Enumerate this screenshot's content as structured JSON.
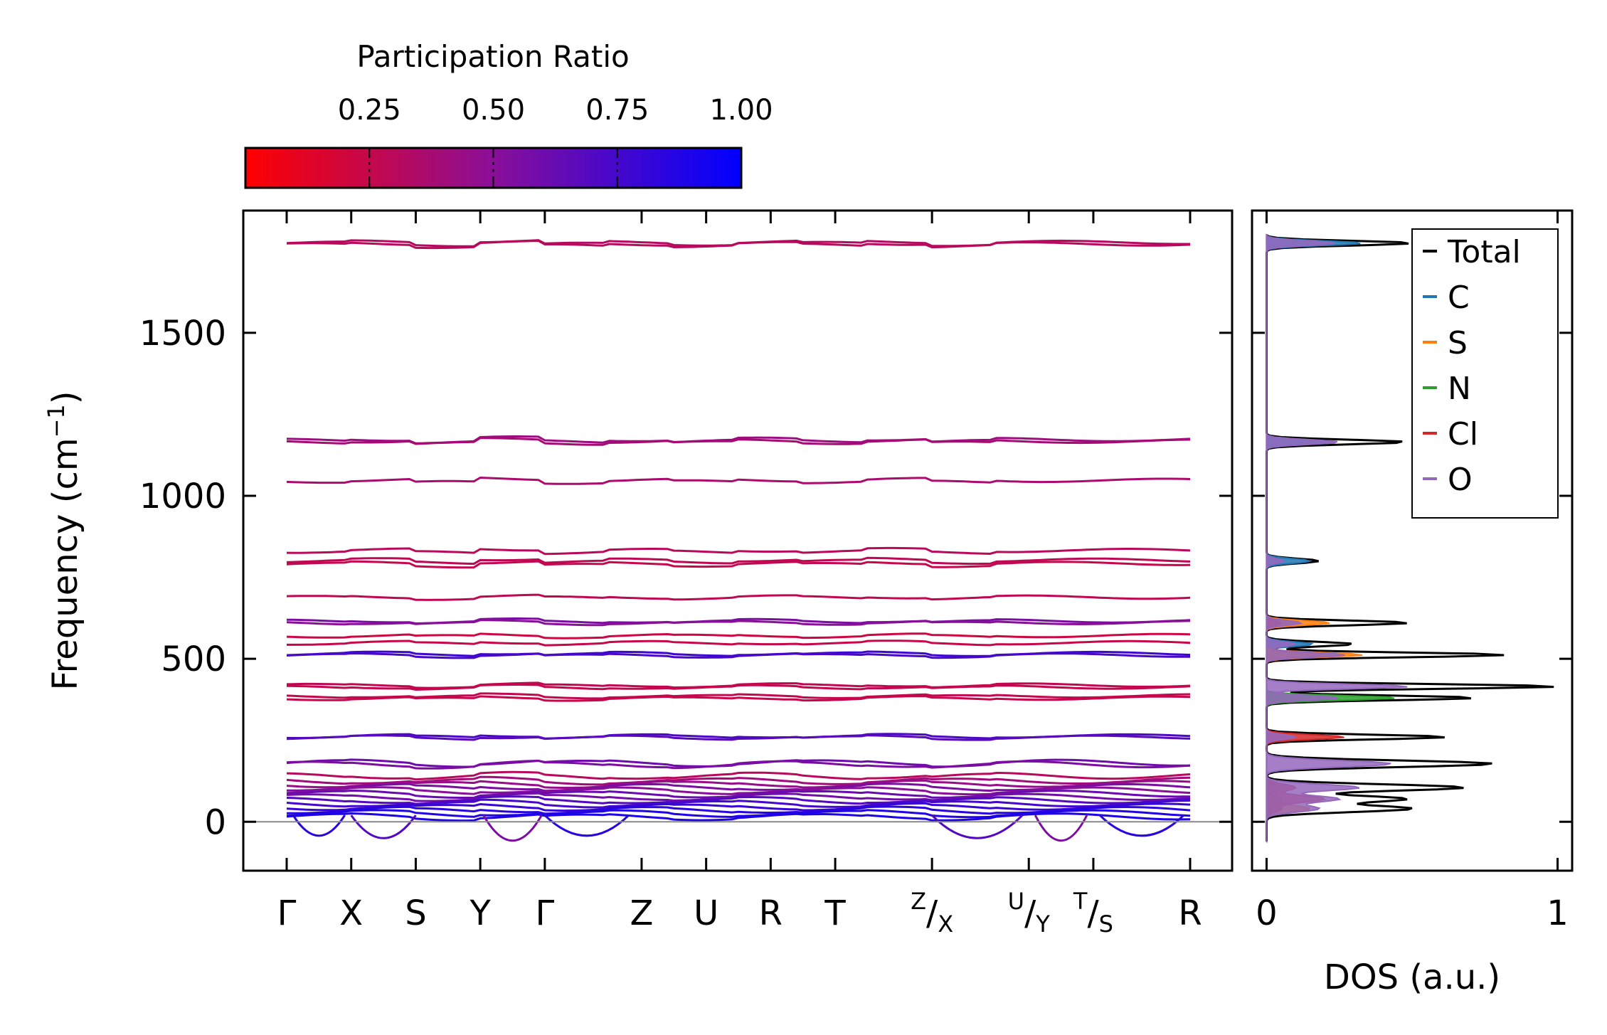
{
  "chart_data": {
    "type": "line",
    "figure": "phonon band structure with participation-ratio coloring and projected density of states",
    "colorbar": {
      "title": "Participation Ratio",
      "ticks": [
        0.25,
        0.5,
        0.75,
        1.0
      ],
      "tick_labels": [
        "0.25",
        "0.50",
        "0.75",
        "1.00"
      ],
      "range": [
        0.0,
        1.0
      ],
      "low_color": "#ff0000",
      "mid_color": "#8a0f98",
      "high_color": "#0000ff"
    },
    "band_panel": {
      "ylabel_main": "Frequency (cm",
      "ylabel_sup": "−1",
      "ylabel_end": ")",
      "ylim": [
        -150,
        1875
      ],
      "yticks": [
        0,
        500,
        1000,
        1500
      ],
      "ytick_labels": [
        "0",
        "500",
        "1000",
        "1500"
      ],
      "path_positions": [
        0,
        1,
        2,
        3,
        4,
        5.5,
        6.5,
        7.5,
        8.5,
        10,
        11.5,
        12.5,
        14
      ],
      "kpoints": [
        {
          "label": "Γ"
        },
        {
          "label": "X"
        },
        {
          "label": "S"
        },
        {
          "label": "Y"
        },
        {
          "label": "Γ"
        },
        {
          "label": "Z"
        },
        {
          "label": "U"
        },
        {
          "label": "R"
        },
        {
          "label": "T"
        },
        {
          "label": "X",
          "pre": "Z",
          "sub": "X"
        },
        {
          "label": "Y",
          "pre": "U",
          "sub": "Y"
        },
        {
          "label": "S",
          "pre": "T",
          "sub": "S"
        },
        {
          "label": "R"
        }
      ],
      "zero_line": 0,
      "bands": [
        {
          "freq": 1775,
          "pr": 0.32
        },
        {
          "freq": 1770,
          "pr": 0.3
        },
        {
          "freq": 1170,
          "pr": 0.42
        },
        {
          "freq": 1165,
          "pr": 0.38
        },
        {
          "freq": 1045,
          "pr": 0.36
        },
        {
          "freq": 830,
          "pr": 0.3
        },
        {
          "freq": 800,
          "pr": 0.28
        },
        {
          "freq": 790,
          "pr": 0.25
        },
        {
          "freq": 688,
          "pr": 0.27
        },
        {
          "freq": 615,
          "pr": 0.55
        },
        {
          "freq": 610,
          "pr": 0.5
        },
        {
          "freq": 570,
          "pr": 0.22
        },
        {
          "freq": 548,
          "pr": 0.24
        },
        {
          "freq": 515,
          "pr": 0.78
        },
        {
          "freq": 510,
          "pr": 0.74
        },
        {
          "freq": 418,
          "pr": 0.27
        },
        {
          "freq": 412,
          "pr": 0.25
        },
        {
          "freq": 385,
          "pr": 0.26
        },
        {
          "freq": 378,
          "pr": 0.24
        },
        {
          "freq": 262,
          "pr": 0.72
        },
        {
          "freq": 258,
          "pr": 0.68
        },
        {
          "freq": 180,
          "pr": 0.6
        },
        {
          "freq": 175,
          "pr": 0.55
        },
        {
          "freq": 140,
          "pr": 0.3
        },
        {
          "freq": 125,
          "pr": 0.4
        },
        {
          "freq": 115,
          "pr": 0.45
        },
        {
          "freq": 105,
          "pr": 0.55
        },
        {
          "freq": 95,
          "pr": 0.5
        },
        {
          "freq": 85,
          "pr": 0.62
        },
        {
          "freq": 75,
          "pr": 0.58
        },
        {
          "freq": 65,
          "pr": 0.7
        },
        {
          "freq": 55,
          "pr": 0.75
        },
        {
          "freq": 45,
          "pr": 0.8
        },
        {
          "freq": 35,
          "pr": 0.85
        },
        {
          "freq": 25,
          "pr": 0.88
        },
        {
          "freq": 15,
          "pr": 0.9
        }
      ]
    },
    "dos_panel": {
      "xlabel": "DOS (a.u.)",
      "xlim": [
        -0.05,
        1.05
      ],
      "xticks": [
        0,
        1
      ],
      "xtick_labels": [
        "0",
        "1"
      ],
      "legend": [
        {
          "name": "Total",
          "color": "#000000"
        },
        {
          "name": "C",
          "color": "#1f77b4"
        },
        {
          "name": "S",
          "color": "#ff7f0e"
        },
        {
          "name": "N",
          "color": "#2ca02c"
        },
        {
          "name": "Cl",
          "color": "#d62728"
        },
        {
          "name": "O",
          "color": "#9467bd"
        }
      ],
      "peaks": [
        {
          "freq": 1775,
          "Total": 0.5,
          "C": 0.33,
          "S": 0.0,
          "N": 0.0,
          "Cl": 0.0,
          "O": 0.24
        },
        {
          "freq": 1165,
          "Total": 0.48,
          "C": 0.25,
          "S": 0.0,
          "N": 0.0,
          "Cl": 0.0,
          "O": 0.25
        },
        {
          "freq": 800,
          "Total": 0.18,
          "C": 0.15,
          "S": 0.0,
          "N": 0.0,
          "Cl": 0.0,
          "O": 0.06
        },
        {
          "freq": 610,
          "Total": 0.49,
          "C": 0.1,
          "S": 0.22,
          "N": 0.0,
          "Cl": 0.05,
          "O": 0.12
        },
        {
          "freq": 545,
          "Total": 0.3,
          "C": 0.16,
          "S": 0.0,
          "N": 0.0,
          "Cl": 0.0,
          "O": 0.1
        },
        {
          "freq": 512,
          "Total": 0.82,
          "C": 0.2,
          "S": 0.33,
          "N": 0.0,
          "Cl": 0.0,
          "O": 0.27
        },
        {
          "freq": 415,
          "Total": 1.0,
          "C": 0.0,
          "S": 0.0,
          "N": 0.0,
          "Cl": 0.0,
          "O": 0.49
        },
        {
          "freq": 380,
          "Total": 0.72,
          "C": 0.0,
          "S": 0.0,
          "N": 0.45,
          "Cl": 0.0,
          "O": 0.25
        },
        {
          "freq": 260,
          "Total": 0.62,
          "C": 0.0,
          "S": 0.0,
          "N": 0.0,
          "Cl": 0.27,
          "O": 0.1
        },
        {
          "freq": 178,
          "Total": 0.78,
          "C": 0.0,
          "S": 0.0,
          "N": 0.0,
          "Cl": 0.0,
          "O": 0.43
        },
        {
          "freq": 105,
          "Total": 0.68,
          "C": 0.0,
          "S": 0.0,
          "N": 0.05,
          "Cl": 0.1,
          "O": 0.32
        },
        {
          "freq": 70,
          "Total": 0.48,
          "C": 0.05,
          "S": 0.05,
          "N": 0.04,
          "Cl": 0.2,
          "O": 0.25
        },
        {
          "freq": 40,
          "Total": 0.5,
          "C": 0.02,
          "S": 0.15,
          "N": 0.02,
          "Cl": 0.05,
          "O": 0.18
        }
      ]
    }
  }
}
